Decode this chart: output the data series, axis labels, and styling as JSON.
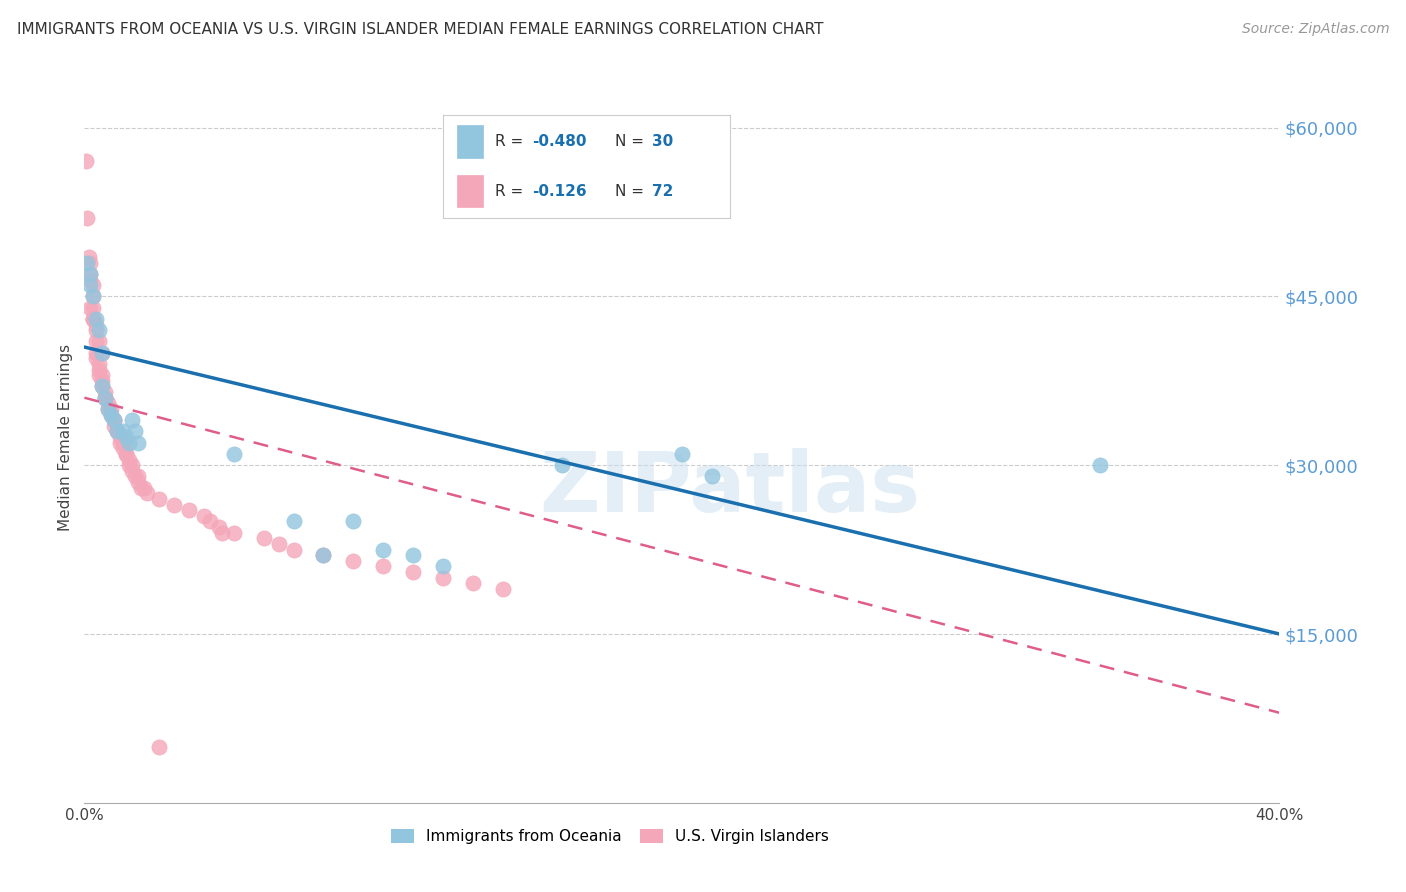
{
  "title": "IMMIGRANTS FROM OCEANIA VS U.S. VIRGIN ISLANDER MEDIAN FEMALE EARNINGS CORRELATION CHART",
  "source": "Source: ZipAtlas.com",
  "ylabel": "Median Female Earnings",
  "watermark": "ZIPatlas",
  "legend_blue_R": "-0.480",
  "legend_blue_N": "30",
  "legend_pink_R": "-0.126",
  "legend_pink_N": "72",
  "xmin": 0.0,
  "xmax": 0.4,
  "ymin": 0,
  "ymax": 65000,
  "yticks": [
    15000,
    30000,
    45000,
    60000
  ],
  "ytick_labels": [
    "$15,000",
    "$30,000",
    "$45,000",
    "$60,000"
  ],
  "xticks": [
    0.0,
    0.05,
    0.1,
    0.15,
    0.2,
    0.25,
    0.3,
    0.35,
    0.4
  ],
  "xtick_labels": [
    "0.0%",
    "",
    "",
    "",
    "",
    "",
    "",
    "",
    "40.0%"
  ],
  "blue_color": "#92c5de",
  "pink_color": "#f4a7b9",
  "trend_blue_color": "#1a6faf",
  "trend_pink_color": "#e05c8a",
  "axis_label_color": "#5b9bd5",
  "grid_color": "#cccccc",
  "background_color": "#ffffff",
  "blue_x": [
    0.001,
    0.002,
    0.002,
    0.003,
    0.004,
    0.005,
    0.006,
    0.006,
    0.007,
    0.008,
    0.009,
    0.01,
    0.011,
    0.013,
    0.014,
    0.015,
    0.016,
    0.017,
    0.018,
    0.05,
    0.07,
    0.08,
    0.09,
    0.1,
    0.11,
    0.12,
    0.16,
    0.2,
    0.21,
    0.34
  ],
  "blue_y": [
    48000,
    47000,
    46000,
    45000,
    43000,
    42000,
    40000,
    37000,
    36000,
    35000,
    34500,
    34000,
    33000,
    33000,
    32500,
    32000,
    34000,
    33000,
    32000,
    31000,
    25000,
    22000,
    25000,
    22500,
    22000,
    21000,
    30000,
    31000,
    29000,
    30000
  ],
  "pink_x": [
    0.0005,
    0.001,
    0.0015,
    0.002,
    0.002,
    0.002,
    0.003,
    0.003,
    0.003,
    0.003,
    0.004,
    0.004,
    0.004,
    0.004,
    0.005,
    0.005,
    0.005,
    0.006,
    0.006,
    0.007,
    0.007,
    0.008,
    0.008,
    0.009,
    0.009,
    0.01,
    0.01,
    0.01,
    0.011,
    0.011,
    0.012,
    0.012,
    0.013,
    0.013,
    0.014,
    0.014,
    0.015,
    0.015,
    0.016,
    0.016,
    0.017,
    0.018,
    0.018,
    0.019,
    0.02,
    0.021,
    0.025,
    0.03,
    0.035,
    0.04,
    0.042,
    0.045,
    0.046,
    0.05,
    0.06,
    0.065,
    0.07,
    0.08,
    0.09,
    0.1,
    0.11,
    0.12,
    0.13,
    0.14,
    0.002,
    0.003,
    0.004,
    0.005,
    0.006,
    0.006,
    0.007,
    0.025
  ],
  "pink_y": [
    57000,
    52000,
    48500,
    48000,
    47000,
    46500,
    46000,
    45000,
    44000,
    43000,
    42500,
    41000,
    40000,
    39500,
    39000,
    38500,
    38000,
    37500,
    37000,
    36500,
    36000,
    35500,
    35000,
    35000,
    34500,
    34000,
    34000,
    33500,
    33000,
    33000,
    32500,
    32000,
    32000,
    31500,
    31000,
    31000,
    30500,
    30000,
    30000,
    29500,
    29000,
    29000,
    28500,
    28000,
    28000,
    27500,
    27000,
    26500,
    26000,
    25500,
    25000,
    24500,
    24000,
    24000,
    23500,
    23000,
    22500,
    22000,
    21500,
    21000,
    20500,
    20000,
    19500,
    19000,
    44000,
    43000,
    42000,
    41000,
    40000,
    38000,
    36000,
    5000
  ],
  "blue_trend_x0": 0.0,
  "blue_trend_y0": 40500,
  "blue_trend_x1": 0.4,
  "blue_trend_y1": 15000,
  "pink_trend_x0": 0.0,
  "pink_trend_y0": 36000,
  "pink_trend_x1": 0.4,
  "pink_trend_y1": 8000
}
